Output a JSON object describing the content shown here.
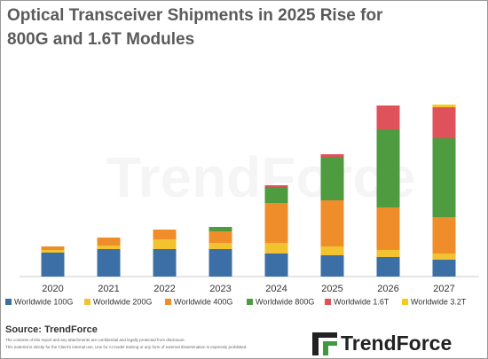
{
  "chart_data": {
    "type": "bar",
    "stacked": true,
    "title_lines": [
      "Optical Transceiver Shipments in 2025 Rise for",
      "800G and 1.6T Modules"
    ],
    "categories": [
      "2020",
      "2021",
      "2022",
      "2023",
      "2024",
      "2025",
      "2026",
      "2027"
    ],
    "series": [
      {
        "name": "Worldwide 100G",
        "color": "#3b6fa6",
        "values": [
          27,
          31,
          31,
          31,
          26,
          24,
          22,
          19
        ]
      },
      {
        "name": "Worldwide 200G",
        "color": "#f2c230",
        "values": [
          3,
          4,
          11,
          7,
          12,
          10,
          8,
          7
        ]
      },
      {
        "name": "Worldwide 400G",
        "color": "#f08d2b",
        "values": [
          4,
          9,
          11,
          13,
          45,
          52,
          48,
          41
        ]
      },
      {
        "name": "Worldwide 800G",
        "color": "#4e9b40",
        "values": [
          0,
          0,
          0,
          5,
          18,
          49,
          88,
          89
        ]
      },
      {
        "name": "Worldwide 1.6T",
        "color": "#e0525b",
        "values": [
          0,
          0,
          0,
          0,
          2,
          3,
          27,
          35
        ]
      },
      {
        "name": "Worldwide 3.2T",
        "color": "#f6c91a",
        "values": [
          0,
          0,
          0,
          0,
          0,
          0,
          0,
          3
        ]
      }
    ],
    "ylim": [
      0,
      200
    ],
    "source": "Source: TrendForce",
    "disclaimer": [
      "The contents of this report and any attachments are confidential and legally protected from disclosure.",
      "This material is strictly for the Client's internal use. Use for AI model training or any form of external dissemination is expressly prohibited."
    ],
    "watermark": "TrendForce",
    "logo": "TrendForce"
  }
}
